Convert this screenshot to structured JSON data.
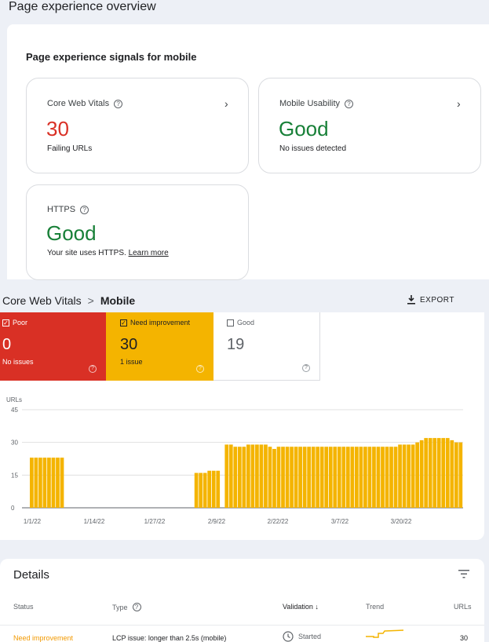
{
  "overview": {
    "title": "Page experience overview",
    "heading": "Page experience signals for mobile",
    "core_web_vitals": {
      "label": "Core Web Vitals",
      "value": "30",
      "sub": "Failing URLs"
    },
    "mobile_usability": {
      "label": "Mobile Usability",
      "value": "Good",
      "sub": "No issues detected"
    },
    "https": {
      "label": "HTTPS",
      "value": "Good",
      "sub": "Your site uses HTTPS.",
      "link": "Learn more"
    }
  },
  "cwv": {
    "breadcrumb_root": "Core Web Vitals",
    "breadcrumb_sep": ">",
    "breadcrumb_current": "Mobile",
    "export_label": "EXPORT",
    "tiles": [
      {
        "label": "Poor",
        "value": "0",
        "issues": "No issues",
        "checked": true,
        "color": "#d93025"
      },
      {
        "label": "Need improvement",
        "value": "30",
        "issues": "1 issue",
        "checked": true,
        "color": "#f4b400"
      },
      {
        "label": "Good",
        "value": "19",
        "issues": "",
        "checked": false,
        "color": "#ffffff"
      }
    ]
  },
  "chart_data": {
    "type": "bar",
    "ylabel": "URLs",
    "ylim": [
      0,
      45
    ],
    "yticks": [
      "0",
      "15",
      "30",
      "45"
    ],
    "xticks": [
      "1/1/22",
      "1/14/22",
      "1/27/22",
      "2/9/22",
      "2/22/22",
      "3/7/22",
      "3/20/22"
    ],
    "bar_color": "#f4b400",
    "values": [
      23,
      23,
      23,
      23,
      23,
      23,
      23,
      23,
      0,
      0,
      0,
      0,
      0,
      0,
      0,
      0,
      0,
      0,
      0,
      0,
      0,
      0,
      0,
      0,
      0,
      0,
      0,
      0,
      0,
      0,
      0,
      0,
      0,
      0,
      0,
      0,
      0,
      0,
      16,
      16,
      16,
      17,
      17,
      17,
      0,
      29,
      29,
      28,
      28,
      28,
      29,
      29,
      29,
      29,
      29,
      28,
      27,
      28,
      28,
      28,
      28,
      28,
      28,
      28,
      28,
      28,
      28,
      28,
      28,
      28,
      28,
      28,
      28,
      28,
      28,
      28,
      28,
      28,
      28,
      28,
      28,
      28,
      28,
      28,
      28,
      29,
      29,
      29,
      29,
      30,
      31,
      32,
      32,
      32,
      32,
      32,
      32,
      31,
      30,
      30
    ],
    "series": [
      {
        "values_note": "daily Need improvement URL counts"
      }
    ]
  },
  "details": {
    "title": "Details",
    "columns": [
      "Status",
      "Type",
      "Validation",
      "Trend",
      "URLs"
    ],
    "rows": [
      {
        "status": "Need improvement",
        "type": "LCP issue: longer than 2.5s (mobile)",
        "validation": "Started",
        "urls": "30"
      }
    ]
  },
  "colors": {
    "poor": "#d93025",
    "need": "#f4b400",
    "good_text": "#188038"
  }
}
